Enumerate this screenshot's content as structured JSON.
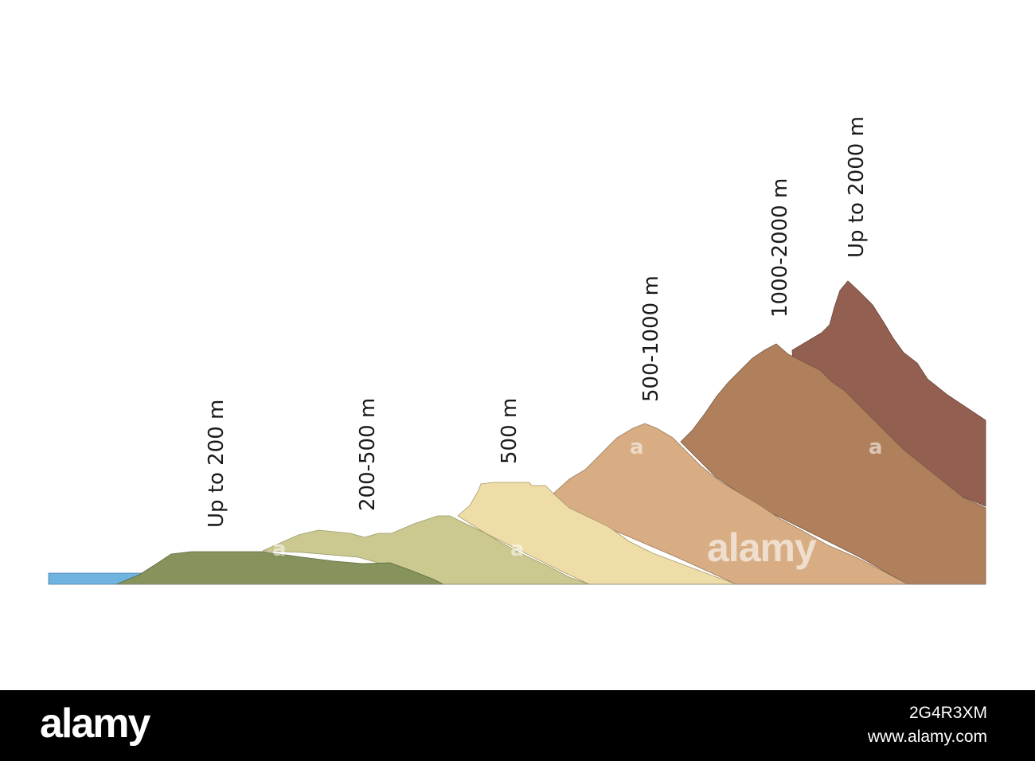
{
  "landforms": [
    {
      "id": "lowland",
      "label": "Up to 200 m",
      "color": "#86935c"
    },
    {
      "id": "hills",
      "label": "200-500 m",
      "color": "#cbc98f"
    },
    {
      "id": "plateau",
      "label": "500 m",
      "color": "#efdda8"
    },
    {
      "id": "low-mountains",
      "label": "500-1000 m",
      "color": "#d8ad84"
    },
    {
      "id": "medium-mountains",
      "label": "1000-2000 m",
      "color": "#b0805c"
    },
    {
      "id": "high-mountains",
      "label": "Up to 2000 m",
      "color": "#935f50"
    }
  ],
  "water_color": "#6fb3e0",
  "watermark": {
    "small_mark": "a",
    "main": "alamy"
  },
  "footer": {
    "logo": "alamy",
    "image_id": "2G4R3XM",
    "url": "www.alamy.com"
  }
}
